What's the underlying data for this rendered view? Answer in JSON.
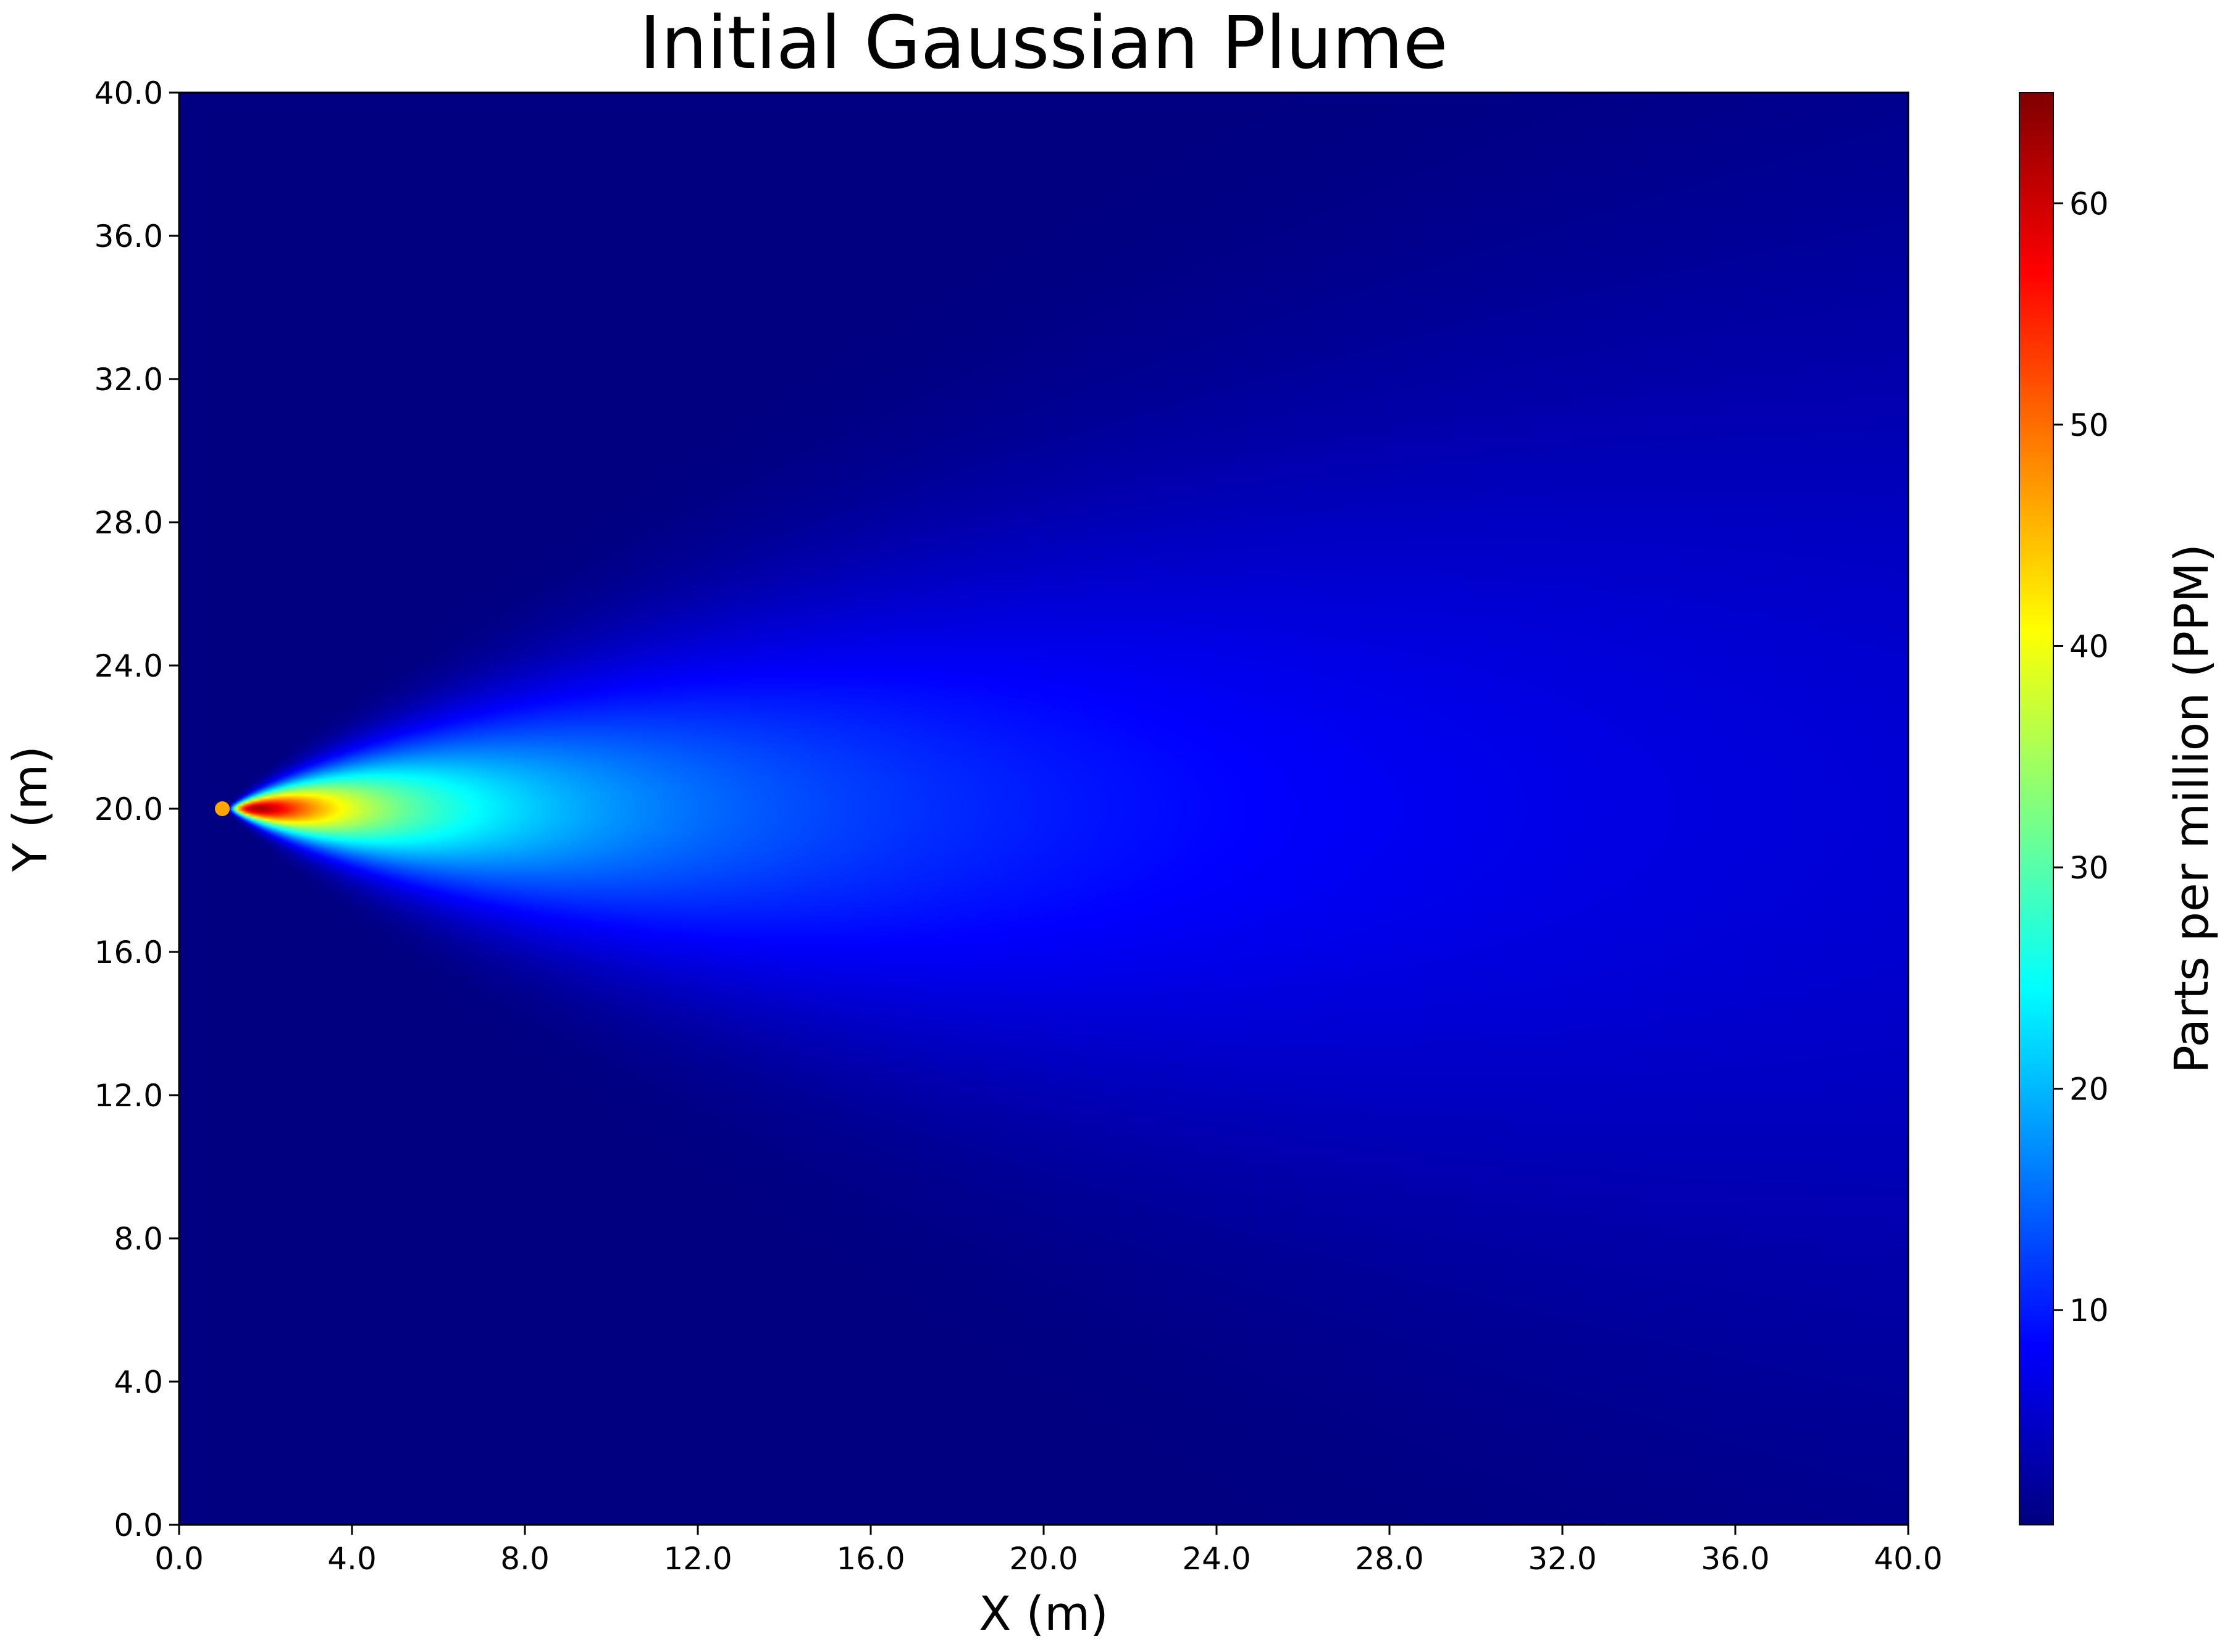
{
  "chart_data": {
    "type": "heatmap",
    "title": "Initial Gaussian Plume",
    "xlabel": "X (m)",
    "ylabel": "Y (m)",
    "xlim": [
      0,
      40
    ],
    "ylim": [
      0,
      40
    ],
    "x_ticks": [
      "0.0",
      "4.0",
      "8.0",
      "12.0",
      "16.0",
      "20.0",
      "24.0",
      "28.0",
      "32.0",
      "36.0",
      "40.0"
    ],
    "y_ticks": [
      "0.0",
      "4.0",
      "8.0",
      "12.0",
      "16.0",
      "20.0",
      "24.0",
      "28.0",
      "32.0",
      "36.0",
      "40.0"
    ],
    "colorbar": {
      "label": "Parts per million (PPM)",
      "colormap": "jet",
      "range": [
        0.3,
        65
      ],
      "ticks": [
        "10",
        "20",
        "30",
        "40",
        "50",
        "60"
      ]
    },
    "source": {
      "x": 1.0,
      "y": 20.0,
      "color": "#FFA500"
    },
    "peak": {
      "x": 2.7,
      "y": 20.0,
      "value": 65
    },
    "grid": false
  }
}
